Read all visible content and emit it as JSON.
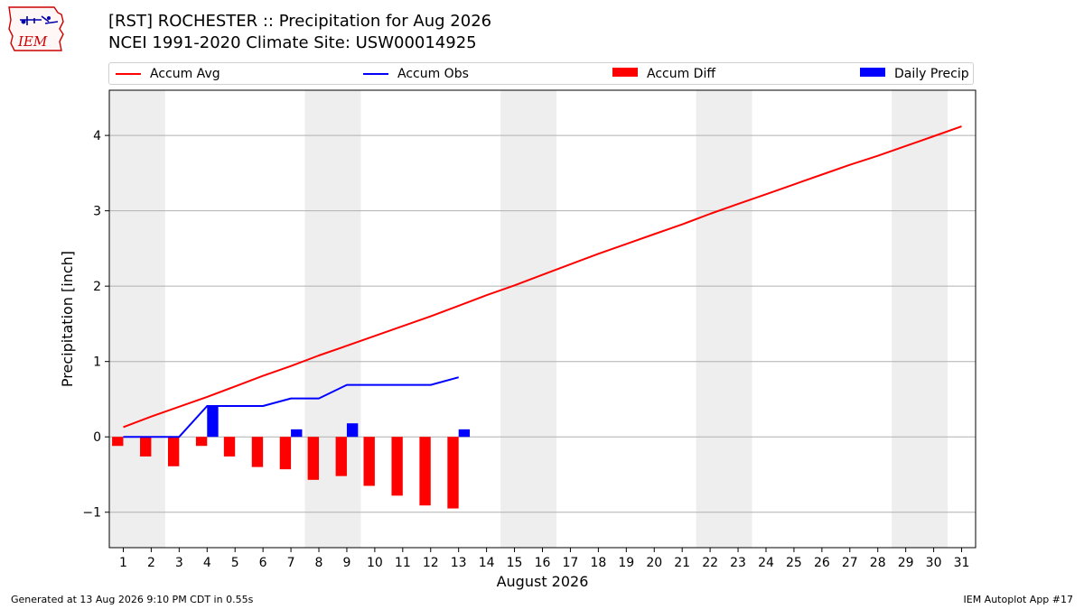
{
  "header": {
    "title_line1": "[RST] ROCHESTER :: Precipitation for Aug 2026",
    "title_line2": "NCEI 1991-2020 Climate Site: USW00014925",
    "logo_text": "IEM"
  },
  "legend": {
    "items": [
      {
        "label": "Accum Avg",
        "color": "#ff0000",
        "kind": "line"
      },
      {
        "label": "Accum Obs",
        "color": "#0000ff",
        "kind": "line"
      },
      {
        "label": "Accum Diff",
        "color": "#ff0000",
        "kind": "bar"
      },
      {
        "label": "Daily Precip",
        "color": "#0000ff",
        "kind": "bar"
      }
    ]
  },
  "chart_data": {
    "type": "bar",
    "title": "[RST] ROCHESTER :: Precipitation for Aug 2026",
    "subtitle": "NCEI 1991-2020 Climate Site: USW00014925",
    "xlabel": "August 2026",
    "ylabel": "Precipitation [inch]",
    "xlim": [
      0.5,
      31.5
    ],
    "ylim": [
      -1.47,
      4.6
    ],
    "x_ticks": [
      1,
      2,
      3,
      4,
      5,
      6,
      7,
      8,
      9,
      10,
      11,
      12,
      13,
      14,
      15,
      16,
      17,
      18,
      19,
      20,
      21,
      22,
      23,
      24,
      25,
      26,
      27,
      28,
      29,
      30,
      31
    ],
    "y_ticks": [
      -1,
      0,
      1,
      2,
      3,
      4
    ],
    "y_tick_labels": [
      "−1",
      "0",
      "1",
      "2",
      "3",
      "4"
    ],
    "grid": "horizontal",
    "weekend_shading": [
      [
        1,
        2
      ],
      [
        8,
        9
      ],
      [
        15,
        16
      ],
      [
        22,
        23
      ],
      [
        29,
        30
      ]
    ],
    "shading_color": "#eeeeee",
    "series": [
      {
        "name": "Accum Avg",
        "kind": "line",
        "color": "#ff0000",
        "x": [
          1,
          2,
          3,
          4,
          5,
          6,
          7,
          8,
          9,
          10,
          11,
          12,
          13,
          14,
          15,
          16,
          17,
          18,
          19,
          20,
          21,
          22,
          23,
          24,
          25,
          26,
          27,
          28,
          29,
          30,
          31
        ],
        "values": [
          0.13,
          0.27,
          0.4,
          0.53,
          0.67,
          0.81,
          0.94,
          1.08,
          1.21,
          1.34,
          1.47,
          1.6,
          1.74,
          1.88,
          2.01,
          2.15,
          2.29,
          2.43,
          2.56,
          2.69,
          2.82,
          2.96,
          3.09,
          3.22,
          3.35,
          3.48,
          3.61,
          3.73,
          3.86,
          3.99,
          4.12
        ]
      },
      {
        "name": "Accum Obs",
        "kind": "line",
        "color": "#0000ff",
        "x": [
          1,
          2,
          3,
          4,
          5,
          6,
          7,
          8,
          9,
          10,
          11,
          12,
          13
        ],
        "values": [
          0.0,
          0.0,
          0.0,
          0.41,
          0.41,
          0.41,
          0.51,
          0.51,
          0.69,
          0.69,
          0.69,
          0.69,
          0.79
        ]
      },
      {
        "name": "Accum Diff",
        "kind": "bar",
        "color": "#ff0000",
        "offset": -0.2,
        "x": [
          1,
          2,
          3,
          4,
          5,
          6,
          7,
          8,
          9,
          10,
          11,
          12,
          13
        ],
        "values": [
          -0.12,
          -0.26,
          -0.39,
          -0.12,
          -0.26,
          -0.4,
          -0.43,
          -0.57,
          -0.52,
          -0.65,
          -0.78,
          -0.91,
          -0.95
        ]
      },
      {
        "name": "Daily Precip",
        "kind": "bar",
        "color": "#0000ff",
        "offset": 0.2,
        "x": [
          1,
          2,
          3,
          4,
          5,
          6,
          7,
          8,
          9,
          10,
          11,
          12,
          13
        ],
        "values": [
          0.0,
          0.0,
          0.0,
          0.41,
          0.0,
          0.0,
          0.1,
          0.0,
          0.18,
          0.0,
          0.0,
          0.0,
          0.1
        ]
      }
    ]
  },
  "footer": {
    "left": "Generated at 13 Aug 2026 9:10 PM CDT in 0.55s",
    "right": "IEM Autoplot App #17"
  }
}
